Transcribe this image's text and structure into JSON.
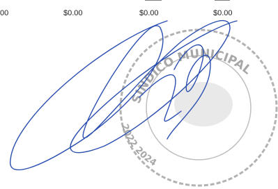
{
  "row": [
    "00",
    "$0.00",
    "$0.00",
    "$0.00"
  ],
  "stamp": {
    "top": "SINDICO MUNICIPAL",
    "bottom": "2022 2024"
  }
}
